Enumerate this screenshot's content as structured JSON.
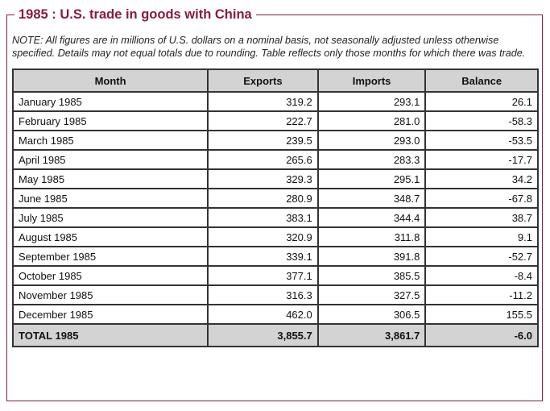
{
  "title": "1985 : U.S. trade in goods with China",
  "note": "NOTE: All figures are in millions of U.S. dollars on a nominal basis, not seasonally adjusted unless otherwise specified. Details may not equal totals due to rounding. Table reflects only those months for which there was trade.",
  "columns": [
    "Month",
    "Exports",
    "Imports",
    "Balance"
  ],
  "rows": [
    {
      "month": "January 1985",
      "exports": "319.2",
      "imports": "293.1",
      "balance": "26.1"
    },
    {
      "month": "February 1985",
      "exports": "222.7",
      "imports": "281.0",
      "balance": "-58.3"
    },
    {
      "month": "March 1985",
      "exports": "239.5",
      "imports": "293.0",
      "balance": "-53.5"
    },
    {
      "month": "April 1985",
      "exports": "265.6",
      "imports": "283.3",
      "balance": "-17.7"
    },
    {
      "month": "May 1985",
      "exports": "329.3",
      "imports": "295.1",
      "balance": "34.2"
    },
    {
      "month": "June 1985",
      "exports": "280.9",
      "imports": "348.7",
      "balance": "-67.8"
    },
    {
      "month": "July 1985",
      "exports": "383.1",
      "imports": "344.4",
      "balance": "38.7"
    },
    {
      "month": "August 1985",
      "exports": "320.9",
      "imports": "311.8",
      "balance": "9.1"
    },
    {
      "month": "September 1985",
      "exports": "339.1",
      "imports": "391.8",
      "balance": "-52.7"
    },
    {
      "month": "October 1985",
      "exports": "377.1",
      "imports": "385.5",
      "balance": "-8.4"
    },
    {
      "month": "November 1985",
      "exports": "316.3",
      "imports": "327.5",
      "balance": "-11.2"
    },
    {
      "month": "December 1985",
      "exports": "462.0",
      "imports": "306.5",
      "balance": "155.5"
    }
  ],
  "total": {
    "month": "TOTAL 1985",
    "exports": "3,855.7",
    "imports": "3,861.7",
    "balance": "-6.0"
  },
  "colors": {
    "accent": "#8a1a3c",
    "header_bg": "#d3d3d3",
    "border": "#333333"
  }
}
